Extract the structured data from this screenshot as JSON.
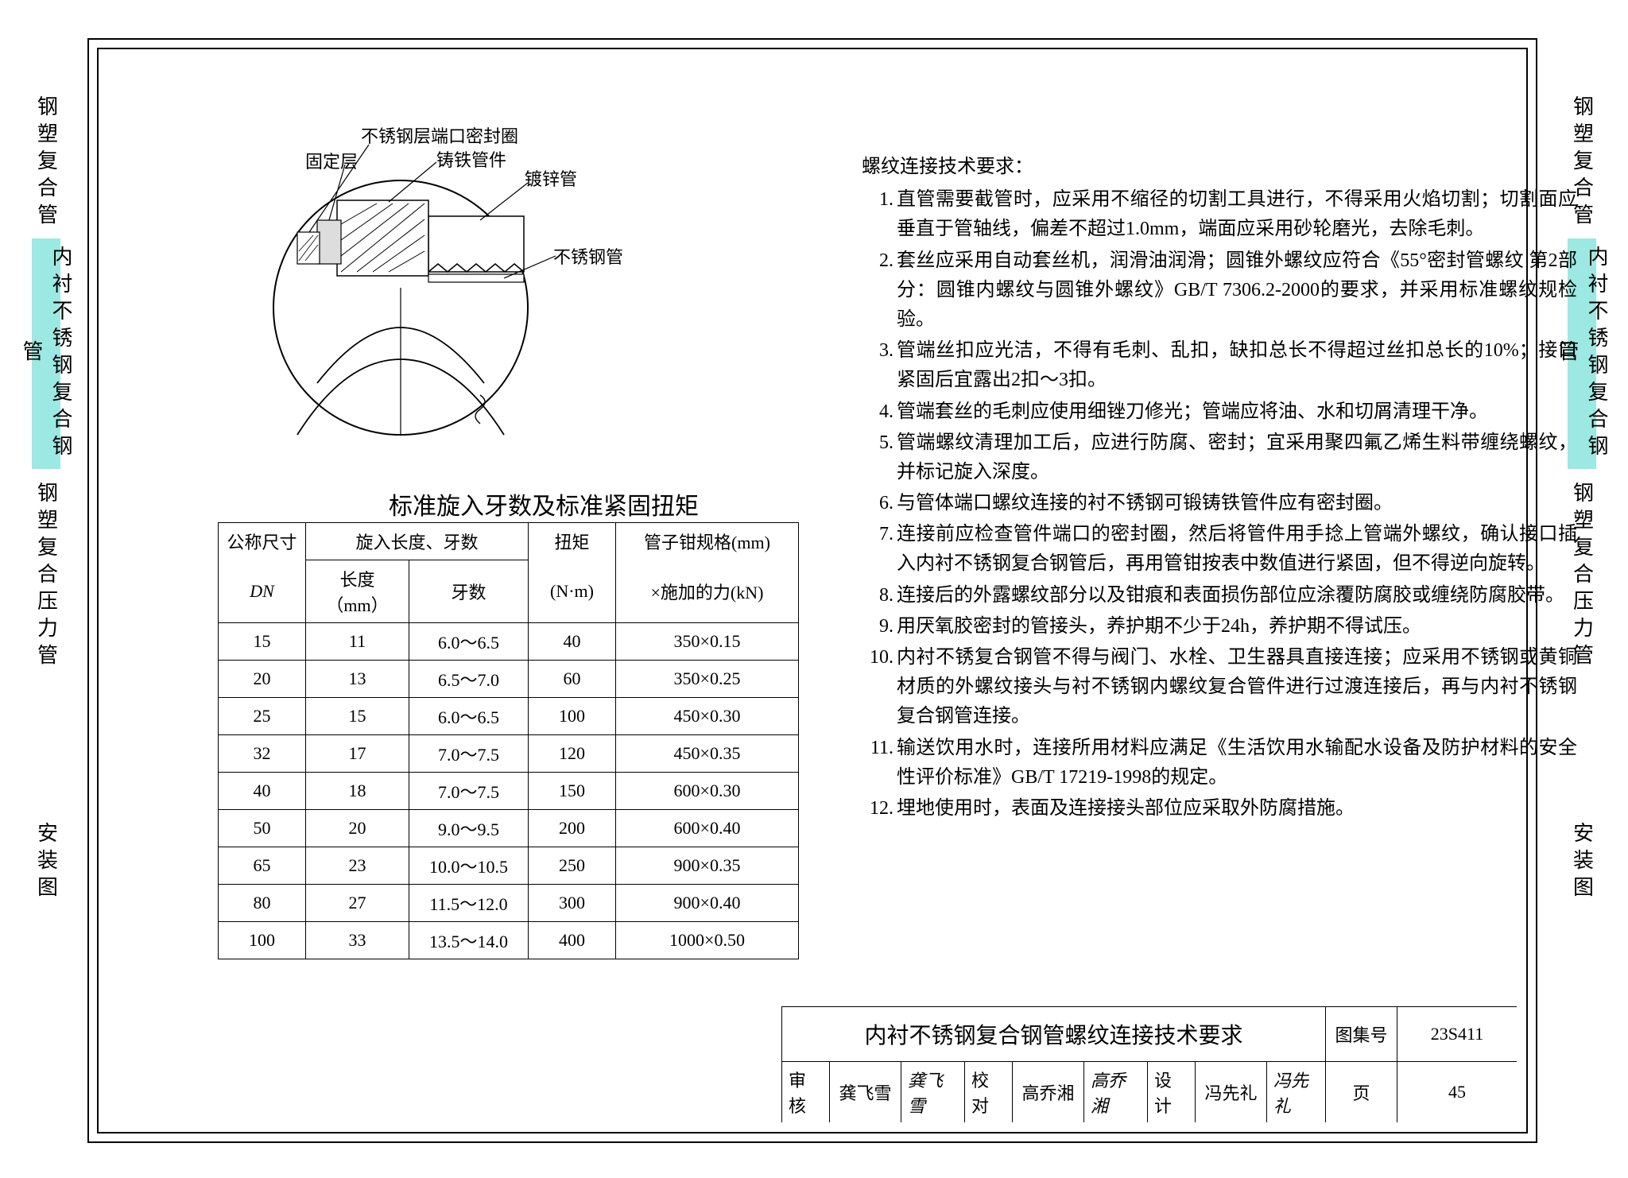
{
  "side_labels": {
    "s1": "钢塑复合管",
    "s2": "内衬不锈钢复合钢管",
    "s3": "钢塑复合压力管",
    "s4": "安装图"
  },
  "diagram": {
    "labels": {
      "seal_ring": "不锈钢层端口密封圈",
      "fixed_layer": "固定层",
      "cast_iron": "铸铁管件",
      "galv_pipe": "镀锌管",
      "ss_pipe": "不锈钢管"
    }
  },
  "table": {
    "title": "标准旋入牙数及标准紧固扭矩",
    "header": {
      "dn": "公称尺寸",
      "dn_sub": "DN",
      "screw_group": "旋入长度、牙数",
      "len": "长度（mm）",
      "teeth": "牙数",
      "torque": "扭矩",
      "torque_unit": "(N·m)",
      "tool": "管子钳规格(mm)",
      "tool_sub": "×施加的力(kN)"
    },
    "rows": [
      {
        "dn": "15",
        "len": "11",
        "teeth": "6.0～6.5",
        "torque": "40",
        "tool": "350×0.15"
      },
      {
        "dn": "20",
        "len": "13",
        "teeth": "6.5～7.0",
        "torque": "60",
        "tool": "350×0.25"
      },
      {
        "dn": "25",
        "len": "15",
        "teeth": "6.0～6.5",
        "torque": "100",
        "tool": "450×0.30"
      },
      {
        "dn": "32",
        "len": "17",
        "teeth": "7.0～7.5",
        "torque": "120",
        "tool": "450×0.35"
      },
      {
        "dn": "40",
        "len": "18",
        "teeth": "7.0～7.5",
        "torque": "150",
        "tool": "600×0.30"
      },
      {
        "dn": "50",
        "len": "20",
        "teeth": "9.0～9.5",
        "torque": "200",
        "tool": "600×0.40"
      },
      {
        "dn": "65",
        "len": "23",
        "teeth": "10.0～10.5",
        "torque": "250",
        "tool": "900×0.35"
      },
      {
        "dn": "80",
        "len": "27",
        "teeth": "11.5～12.0",
        "torque": "300",
        "tool": "900×0.40"
      },
      {
        "dn": "100",
        "len": "33",
        "teeth": "13.5～14.0",
        "torque": "400",
        "tool": "1000×0.50"
      }
    ]
  },
  "requirements": {
    "title": "螺纹连接技术要求：",
    "items": [
      "直管需要截管时，应采用不缩径的切割工具进行，不得采用火焰切割；切割面应垂直于管轴线，偏差不超过1.0mm，端面应采用砂轮磨光，去除毛刺。",
      "套丝应采用自动套丝机，润滑油润滑；圆锥外螺纹应符合《55°密封管螺纹 第2部分：圆锥内螺纹与圆锥外螺纹》GB/T 7306.2-2000的要求，并采用标准螺纹规检验。",
      "管端丝扣应光洁，不得有毛刺、乱扣，缺扣总长不得超过丝扣总长的10%；接口紧固后宜露出2扣～3扣。",
      "管端套丝的毛刺应使用细锉刀修光；管端应将油、水和切屑清理干净。",
      "管端螺纹清理加工后，应进行防腐、密封；宜采用聚四氟乙烯生料带缠绕螺纹，并标记旋入深度。",
      "与管体端口螺纹连接的衬不锈钢可锻铸铁管件应有密封圈。",
      "连接前应检查管件端口的密封圈，然后将管件用手捻上管端外螺纹，确认接口插入内衬不锈钢复合钢管后，再用管钳按表中数值进行紧固，但不得逆向旋转。",
      "连接后的外露螺纹部分以及钳痕和表面损伤部位应涂覆防腐胶或缠绕防腐胶带。",
      "用厌氧胶密封的管接头，养护期不少于24h，养护期不得试压。",
      "内衬不锈复合钢管不得与阀门、水栓、卫生器具直接连接；应采用不锈钢或黄铜材质的外螺纹接头与衬不锈钢内螺纹复合管件进行过渡连接后，再与内衬不锈钢复合钢管连接。",
      "输送饮用水时，连接所用材料应满足《生活饮用水输配水设备及防护材料的安全性评价标准》GB/T 17219-1998的规定。",
      "埋地使用时，表面及连接接头部位应采取外防腐措施。"
    ]
  },
  "title_block": {
    "title": "内衬不锈钢复合钢管螺纹连接技术要求",
    "set_label": "图集号",
    "set_no": "23S411",
    "review_label": "审核",
    "review_name": "龚飞雪",
    "review_sig": "龚飞雪",
    "check_label": "校对",
    "check_name": "高乔湘",
    "check_sig": "高乔湘",
    "design_label": "设计",
    "design_name": "冯先礼",
    "design_sig": "冯先礼",
    "page_label": "页",
    "page_no": "45"
  }
}
